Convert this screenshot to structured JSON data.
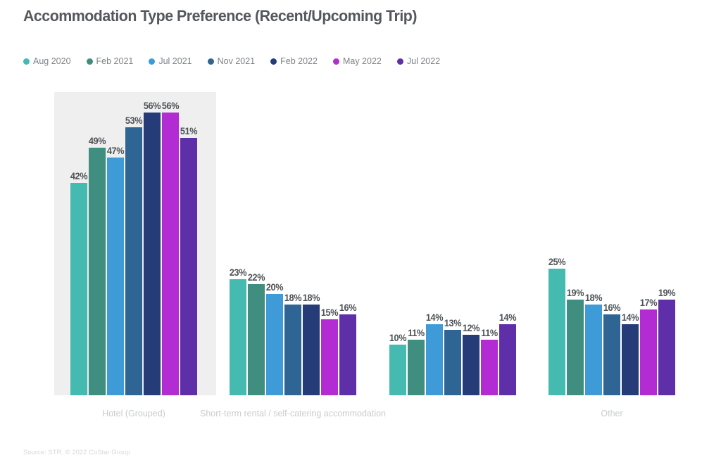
{
  "chart_data": {
    "type": "bar",
    "title": "Accommodation Type Preference (Recent/Upcoming Trip)",
    "categories": [
      "Hotel (Grouped)",
      "Short-term rental / self-catering accommodation",
      "",
      "Other"
    ],
    "series": [
      {
        "name": "Aug 2020",
        "color": "#45bab0",
        "values": [
          42,
          23,
          10,
          25
        ]
      },
      {
        "name": "Feb 2021",
        "color": "#3f8e7f",
        "values": [
          49,
          22,
          11,
          19
        ]
      },
      {
        "name": "Jul 2021",
        "color": "#3e9bd8",
        "values": [
          47,
          20,
          14,
          18
        ]
      },
      {
        "name": "Nov 2021",
        "color": "#2f6595",
        "values": [
          53,
          18,
          13,
          16
        ]
      },
      {
        "name": "Feb 2022",
        "color": "#253c78",
        "values": [
          56,
          18,
          12,
          14
        ]
      },
      {
        "name": "May 2022",
        "color": "#b32cd3",
        "values": [
          56,
          15,
          11,
          17
        ]
      },
      {
        "name": "Jul 2022",
        "color": "#5f2fa9",
        "values": [
          51,
          16,
          14,
          19
        ]
      }
    ],
    "value_suffix": "%",
    "ylim": [
      0,
      60
    ],
    "highlighted_group_index": 0,
    "legend_position": "top",
    "grid": false,
    "highlight_color": "#efeff0"
  },
  "source": "Source: STR. © 2022 CoStar Group"
}
